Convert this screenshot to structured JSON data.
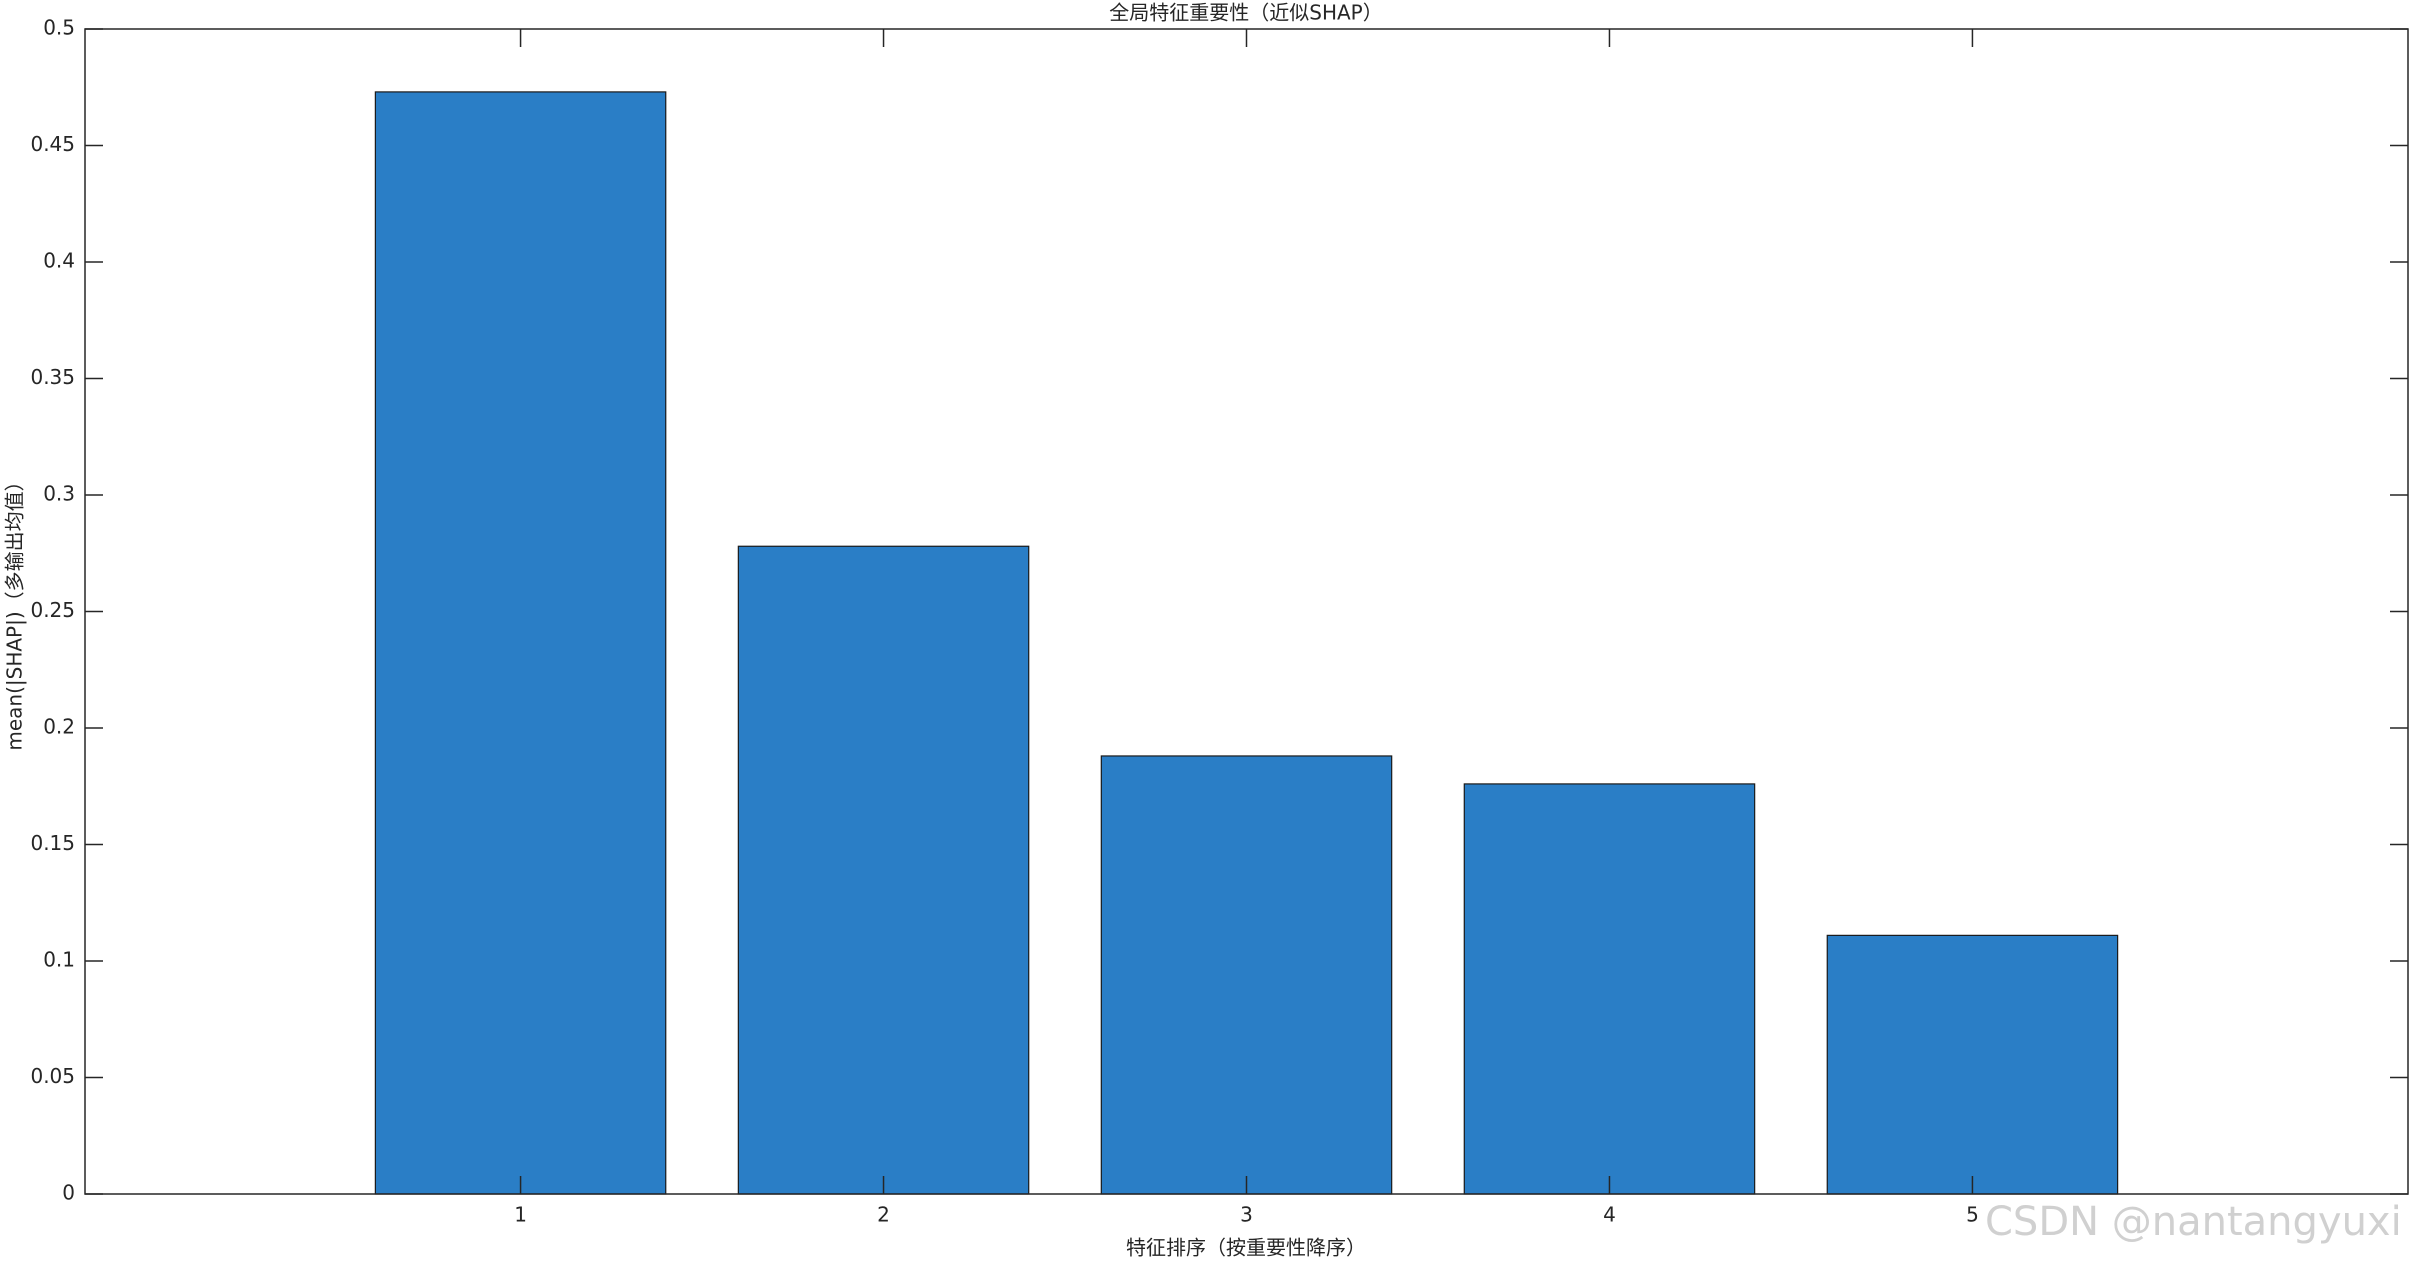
{
  "chart_data": {
    "type": "bar",
    "title": "全局特征重要性（近似SHAP）",
    "x_label": "特征排序（按重要性降序）",
    "y_label": "mean(|SHAP|)（多输出均值）",
    "x": [
      1,
      2,
      3,
      4,
      5
    ],
    "values": [
      0.473,
      0.278,
      0.188,
      0.176,
      0.111
    ],
    "color": "#2a7ec6",
    "bar_width": 0.8,
    "xlim": [
      -0.2,
      6.2
    ],
    "xticks": [
      1,
      2,
      3,
      4,
      5
    ],
    "ylim": [
      0,
      0.5
    ],
    "yticks": [
      0,
      0.05,
      0.1,
      0.15,
      0.2,
      0.25,
      0.3,
      0.35,
      0.4,
      0.45,
      0.5
    ],
    "grid": false,
    "watermark": "CSDN @nantangyuxi"
  }
}
